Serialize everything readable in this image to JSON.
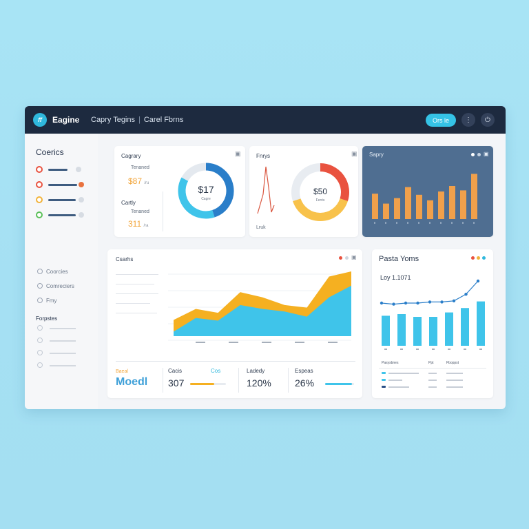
{
  "app": {
    "name": "Eagine",
    "nav": [
      "Capry Tegins",
      "Carel Fbrns"
    ],
    "button": "Ors le"
  },
  "sidebar": {
    "title": "Coerics",
    "links": [
      "Coorcies",
      "Comreciers",
      "Fmy"
    ],
    "subtitle": "Forpstes"
  },
  "card1": {
    "label_top": "Cagrary",
    "sub_top": "Tenaned",
    "value_top": "$87",
    "value_top_suffix": "/ru",
    "label_bottom": "Cartly",
    "sub_bottom": "Tenaned",
    "value_bottom": "311",
    "value_bottom_suffix": "/ra",
    "donut_value": "$17",
    "donut_sub": "Cagre"
  },
  "card2": {
    "label": "Fnrys",
    "spark_label": "Lruk",
    "donut_value": "$50",
    "donut_sub": "Ferris"
  },
  "card3": {
    "title": "Sapry"
  },
  "main_chart": {
    "title": "Csarhs"
  },
  "kpis": {
    "logo_top": "Baeal",
    "logo_bottom": "Moedl",
    "k1_title": "Cacis",
    "k1_tag": "Cos",
    "k1_value": "307",
    "k2_title": "Ladedy",
    "k2_value": "120%",
    "k3_title": "Espeas",
    "k3_value": "26%"
  },
  "right_panel": {
    "title": "Pasta Yoms",
    "line_label": "Loy 1.1071",
    "table_headers": [
      "Pasysbnes",
      "Ppt",
      "Fboppst"
    ]
  },
  "colors": {
    "accent": "#35c3e6",
    "navy": "#1d2a3f",
    "orange": "#f2a53a",
    "red": "#e9523f",
    "dashboard_bg": "#4f6e91"
  },
  "chart_data": [
    {
      "type": "pie",
      "title": "",
      "slices": [
        {
          "label": "",
          "value": 45,
          "color": "#2a7ec9"
        },
        {
          "label": "",
          "value": 38,
          "color": "#3fc4ea"
        },
        {
          "label": "",
          "value": 17,
          "color": "#e4e9ef"
        }
      ]
    },
    {
      "type": "pie",
      "title": "",
      "slices": [
        {
          "label": "",
          "value": 30,
          "color": "#e9523f"
        },
        {
          "label": "",
          "value": 40,
          "color": "#f8c24b"
        },
        {
          "label": "",
          "value": 30,
          "color": "#e8ecf1"
        }
      ]
    },
    {
      "type": "bar",
      "title": "",
      "values": [
        46,
        28,
        38,
        58,
        44,
        34,
        50,
        60,
        52,
        82
      ]
    },
    {
      "type": "area",
      "title": "",
      "series": [
        {
          "name": "",
          "values": [
            25,
            42,
            36,
            68,
            60,
            48,
            44,
            92,
            100
          ]
        },
        {
          "name": "",
          "values": [
            7,
            28,
            24,
            48,
            42,
            38,
            30,
            60,
            78
          ]
        }
      ]
    },
    {
      "type": "bar",
      "title": "",
      "values": [
        42,
        45,
        40,
        40,
        48,
        56,
        68
      ]
    },
    {
      "type": "line",
      "title": "",
      "values": [
        10,
        9,
        10,
        10,
        11,
        11,
        12,
        18,
        30
      ]
    }
  ]
}
